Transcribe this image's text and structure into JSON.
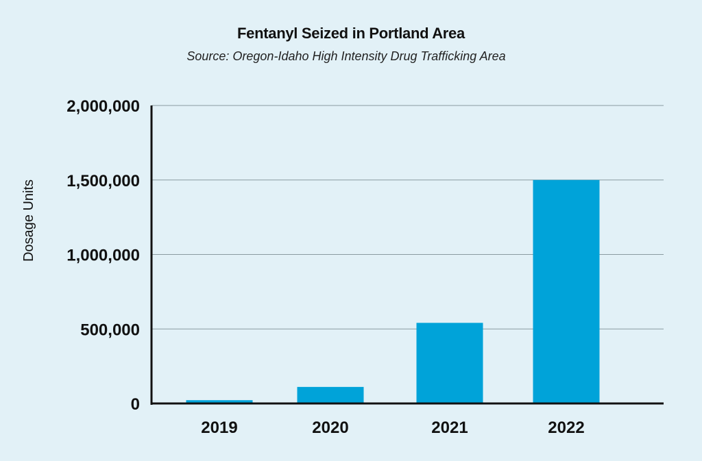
{
  "chart_data": {
    "type": "bar",
    "title": "Fentanyl Seized in Portland Area",
    "subtitle": "Source: Oregon-Idaho High Intensity Drug Trafficking Area",
    "xlabel": "",
    "ylabel": "Dosage Units",
    "categories": [
      "2019",
      "2020",
      "2021",
      "2022"
    ],
    "values": [
      22000,
      111000,
      541000,
      1500000
    ],
    "ylim": [
      0,
      2000000
    ],
    "yticks": [
      0,
      500000,
      1000000,
      1500000,
      2000000
    ],
    "ytick_labels": [
      "0",
      "500,000",
      "1,000,000",
      "1,500,000",
      "2,000,000"
    ],
    "grid": "horizontal",
    "legend": "none",
    "colors": {
      "bar": "#00a3d9",
      "background": "#e2f1f7",
      "grid": "#8a9aa0",
      "axis": "#111111"
    }
  }
}
